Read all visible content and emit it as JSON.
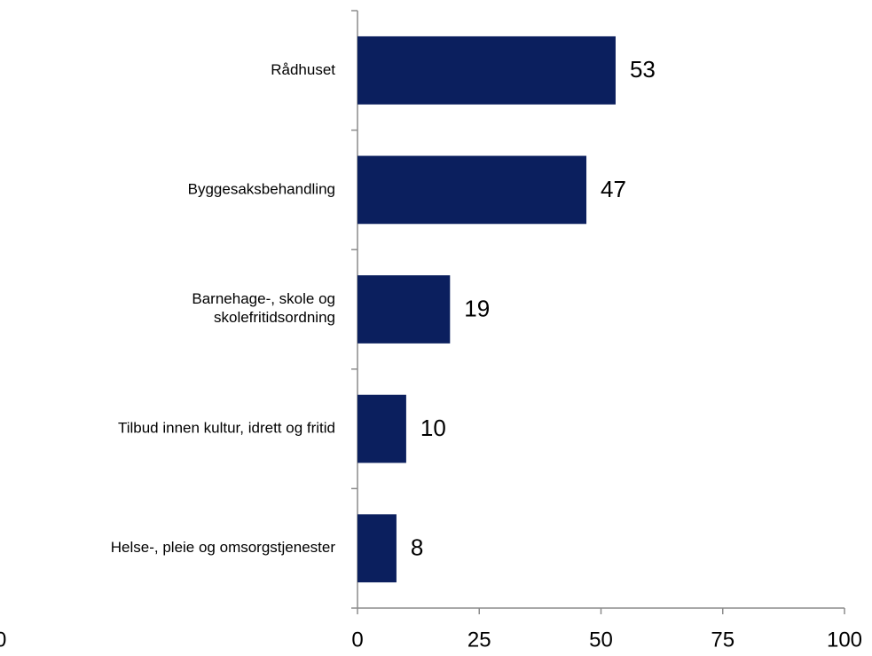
{
  "chart_data": {
    "type": "bar",
    "orientation": "horizontal",
    "categories": [
      "Rådhuset",
      "Byggesaksbehandling",
      "Barnehage-, skole og\nskolefritidsordning",
      "Tilbud innen kultur, idrett og fritid",
      "Helse-, pleie og omsorgstjenester"
    ],
    "values": [
      53,
      47,
      19,
      10,
      8
    ],
    "color": "#0b1f5e",
    "xlim": [
      0,
      100
    ],
    "xticks": [
      0,
      25,
      50,
      75,
      100
    ],
    "grid": false,
    "annotations": [
      "0"
    ]
  }
}
